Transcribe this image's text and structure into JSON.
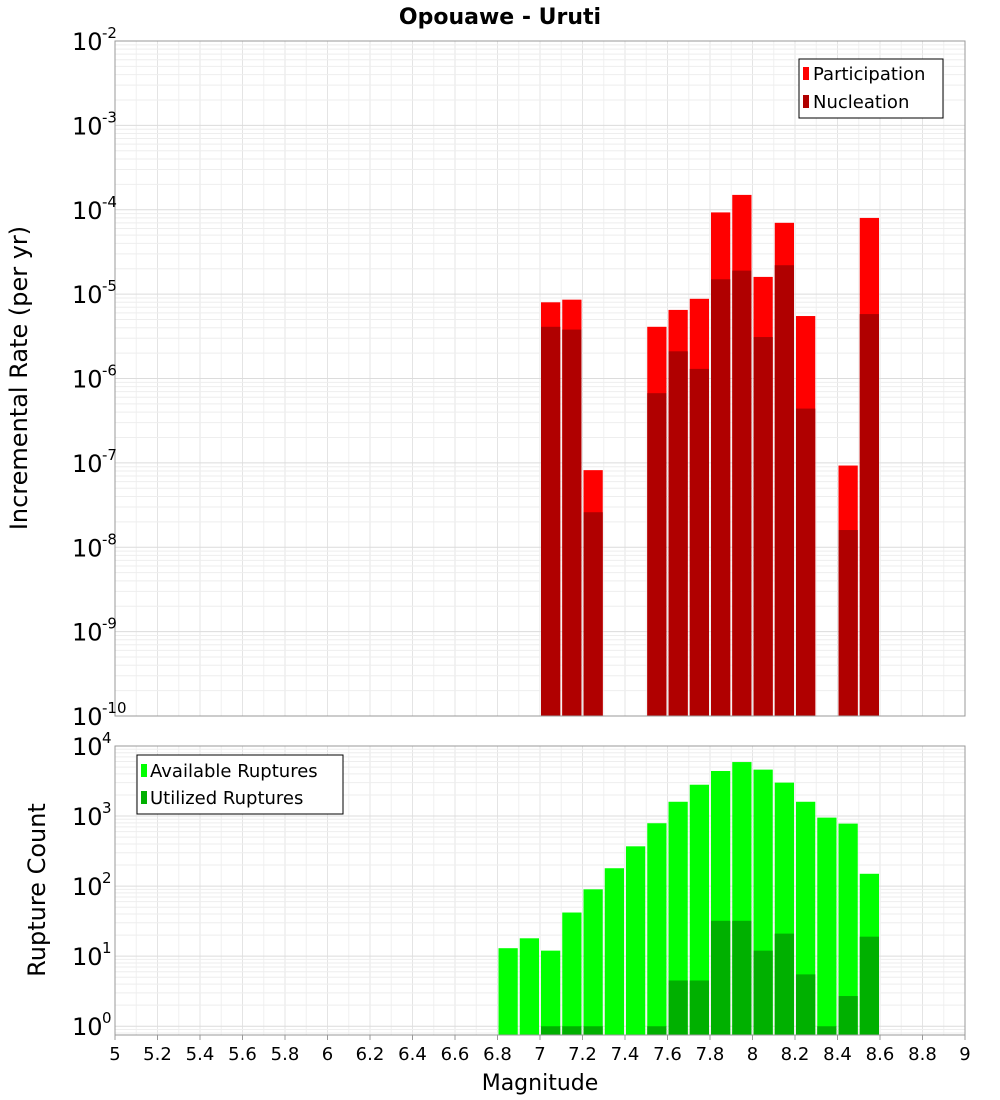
{
  "chart_data": [
    {
      "type": "bar",
      "title": "Opouawe - Uruti",
      "xlabel": "Magnitude",
      "ylabel": "Incremental Rate (per yr)",
      "yscale": "log",
      "ylim": [
        1e-10,
        0.01
      ],
      "xlim": [
        5,
        9
      ],
      "grid": true,
      "legend_position": "top-right",
      "bin_width": 0.1,
      "x": [
        7.05,
        7.15,
        7.25,
        7.55,
        7.65,
        7.75,
        7.85,
        7.95,
        8.05,
        8.15,
        8.25,
        8.45,
        8.55
      ],
      "series": [
        {
          "name": "Participation",
          "color": "#ff0000",
          "values": [
            8e-06,
            8.6e-06,
            8.2e-08,
            4.1e-06,
            6.5e-06,
            8.8e-06,
            9.3e-05,
            0.00015,
            1.6e-05,
            7e-05,
            5.5e-06,
            9.3e-08,
            8e-05
          ]
        },
        {
          "name": "Nucleation",
          "color": "#b00000",
          "values": [
            4.1e-06,
            3.8e-06,
            2.6e-08,
            6.7e-07,
            2.1e-06,
            1.3e-06,
            1.5e-05,
            1.9e-05,
            3.1e-06,
            2.2e-05,
            4.4e-07,
            1.6e-08,
            5.8e-06
          ]
        }
      ]
    },
    {
      "type": "bar",
      "xlabel": "Magnitude",
      "ylabel": "Rupture Count",
      "yscale": "log",
      "ylim": [
        0.75,
        10000
      ],
      "xlim": [
        5,
        9
      ],
      "grid": true,
      "legend_position": "top-left",
      "bin_width": 0.1,
      "x": [
        6.85,
        6.95,
        7.05,
        7.15,
        7.25,
        7.35,
        7.45,
        7.55,
        7.65,
        7.75,
        7.85,
        7.95,
        8.05,
        8.15,
        8.25,
        8.35,
        8.45,
        8.55
      ],
      "series": [
        {
          "name": "Available Ruptures",
          "color": "#00ff00",
          "values": [
            13,
            18,
            12,
            42,
            90,
            180,
            370,
            790,
            1600,
            2800,
            4400,
            5900,
            4600,
            3000,
            1600,
            950,
            780,
            150
          ]
        },
        {
          "name": "Utilized Ruptures",
          "color": "#00b000",
          "values": [
            0,
            0,
            1,
            1,
            1,
            0,
            0,
            1,
            4.5,
            4.5,
            32,
            32,
            12,
            21,
            5.5,
            1,
            2.7,
            19
          ]
        }
      ]
    }
  ],
  "x_ticks": [
    "5",
    "5.2",
    "5.4",
    "5.6",
    "5.8",
    "6",
    "6.2",
    "6.4",
    "6.6",
    "6.8",
    "7",
    "7.2",
    "7.4",
    "7.6",
    "7.8",
    "8",
    "8.2",
    "8.4",
    "8.6",
    "8.8",
    "9"
  ],
  "top_y_ticks": [
    {
      "base": "10",
      "exp": "-2"
    },
    {
      "base": "10",
      "exp": "-3"
    },
    {
      "base": "10",
      "exp": "-4"
    },
    {
      "base": "10",
      "exp": "-5"
    },
    {
      "base": "10",
      "exp": "-6"
    },
    {
      "base": "10",
      "exp": "-7"
    },
    {
      "base": "10",
      "exp": "-8"
    },
    {
      "base": "10",
      "exp": "-9"
    },
    {
      "base": "10",
      "exp": "-10"
    }
  ],
  "bottom_y_ticks": [
    {
      "base": "10",
      "exp": "4"
    },
    {
      "base": "10",
      "exp": "3"
    },
    {
      "base": "10",
      "exp": "2"
    },
    {
      "base": "10",
      "exp": "1"
    },
    {
      "base": "10",
      "exp": "0"
    }
  ]
}
